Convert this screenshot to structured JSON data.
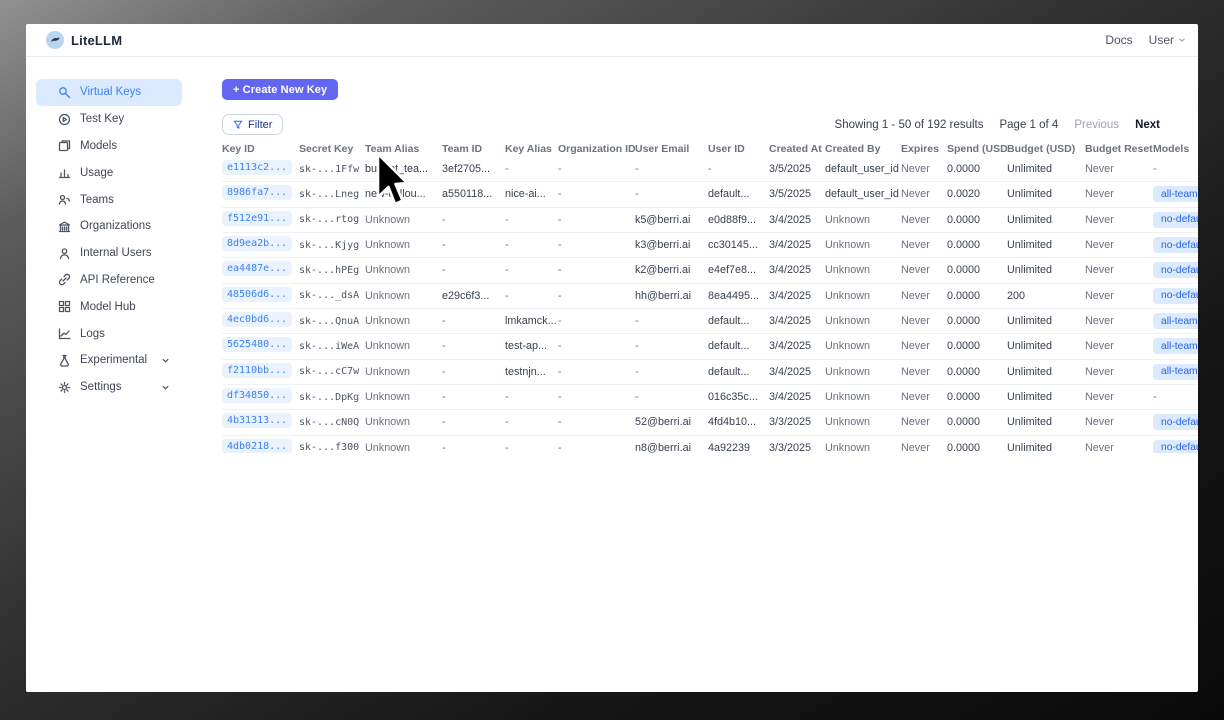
{
  "header": {
    "logo_text": "LiteLLM",
    "docs_label": "Docs",
    "user_label": "User"
  },
  "sidebar": {
    "items": [
      {
        "label": "Virtual Keys",
        "icon": "key-icon",
        "selected": true,
        "chevron": false
      },
      {
        "label": "Test Key",
        "icon": "play-circle-icon",
        "selected": false,
        "chevron": false
      },
      {
        "label": "Models",
        "icon": "models-icon",
        "selected": false,
        "chevron": false
      },
      {
        "label": "Usage",
        "icon": "usage-chart-icon",
        "selected": false,
        "chevron": false
      },
      {
        "label": "Teams",
        "icon": "teams-icon",
        "selected": false,
        "chevron": false
      },
      {
        "label": "Organizations",
        "icon": "organizations-icon",
        "selected": false,
        "chevron": false
      },
      {
        "label": "Internal Users",
        "icon": "internal-users-icon",
        "selected": false,
        "chevron": false
      },
      {
        "label": "API Reference",
        "icon": "api-reference-icon",
        "selected": false,
        "chevron": false
      },
      {
        "label": "Model Hub",
        "icon": "model-hub-icon",
        "selected": false,
        "chevron": false
      },
      {
        "label": "Logs",
        "icon": "logs-icon",
        "selected": false,
        "chevron": false
      },
      {
        "label": "Experimental",
        "icon": "experimental-icon",
        "selected": false,
        "chevron": true
      },
      {
        "label": "Settings",
        "icon": "settings-icon",
        "selected": false,
        "chevron": true
      }
    ]
  },
  "toolbar": {
    "create_button": "+ Create New Key",
    "filter_button": "Filter"
  },
  "pagination": {
    "showing": "Showing 1 - 50 of 192 results",
    "page": "Page 1 of 4",
    "previous": "Previous",
    "next": "Next"
  },
  "table": {
    "columns": [
      "Key ID",
      "Secret Key",
      "Team Alias",
      "Team ID",
      "Key Alias",
      "Organization ID",
      "User Email",
      "User ID",
      "Created At",
      "Created By",
      "Expires",
      "Spend (USD)",
      "Budget (USD)",
      "Budget Reset",
      "Models"
    ],
    "rows": [
      {
        "key_id": "e1113c2...",
        "secret_key": "sk-...1Ffw",
        "team_alias": "budget_tea...",
        "team_id": "3ef2705...",
        "key_alias": "-",
        "organization_id": "-",
        "user_email": "-",
        "user_id": "-",
        "created_at": "3/5/2025",
        "created_by": "default_user_id",
        "expires": "Never",
        "spend": "0.0000",
        "budget": "Unlimited",
        "budget_reset": "Never",
        "models": "-"
      },
      {
        "key_id": "8986fa7...",
        "secret_key": "sk-...Lneg",
        "team_alias": "new-collou...",
        "team_id": "a550118...",
        "key_alias": "nice-ai...",
        "organization_id": "-",
        "user_email": "-",
        "user_id": "default...",
        "created_at": "3/5/2025",
        "created_by": "default_user_id",
        "expires": "Never",
        "spend": "0.0020",
        "budget": "Unlimited",
        "budget_reset": "Never",
        "models": "all-team-models"
      },
      {
        "key_id": "f512e91...",
        "secret_key": "sk-...rtog",
        "team_alias": "Unknown",
        "team_id": "-",
        "key_alias": "-",
        "organization_id": "-",
        "user_email": "k5@berri.ai",
        "user_id": "e0d88f9...",
        "created_at": "3/4/2025",
        "created_by": "Unknown",
        "expires": "Never",
        "spend": "0.0000",
        "budget": "Unlimited",
        "budget_reset": "Never",
        "models": "no-default-models"
      },
      {
        "key_id": "8d9ea2b...",
        "secret_key": "sk-...Kjyg",
        "team_alias": "Unknown",
        "team_id": "-",
        "key_alias": "-",
        "organization_id": "-",
        "user_email": "k3@berri.ai",
        "user_id": "cc30145...",
        "created_at": "3/4/2025",
        "created_by": "Unknown",
        "expires": "Never",
        "spend": "0.0000",
        "budget": "Unlimited",
        "budget_reset": "Never",
        "models": "no-default-models"
      },
      {
        "key_id": "ea4487e...",
        "secret_key": "sk-...hPEg",
        "team_alias": "Unknown",
        "team_id": "-",
        "key_alias": "-",
        "organization_id": "-",
        "user_email": "k2@berri.ai",
        "user_id": "e4ef7e8...",
        "created_at": "3/4/2025",
        "created_by": "Unknown",
        "expires": "Never",
        "spend": "0.0000",
        "budget": "Unlimited",
        "budget_reset": "Never",
        "models": "no-default-models"
      },
      {
        "key_id": "48506d6...",
        "secret_key": "sk-..._dsA",
        "team_alias": "Unknown",
        "team_id": "e29c6f3...",
        "key_alias": "-",
        "organization_id": "-",
        "user_email": "hh@berri.ai",
        "user_id": "8ea4495...",
        "created_at": "3/4/2025",
        "created_by": "Unknown",
        "expires": "Never",
        "spend": "0.0000",
        "budget": "200",
        "budget_reset": "Never",
        "models": "no-default-models"
      },
      {
        "key_id": "4ec0bd6...",
        "secret_key": "sk-...QnuA",
        "team_alias": "Unknown",
        "team_id": "-",
        "key_alias": "lmkamck...",
        "organization_id": "-",
        "user_email": "-",
        "user_id": "default...",
        "created_at": "3/4/2025",
        "created_by": "Unknown",
        "expires": "Never",
        "spend": "0.0000",
        "budget": "Unlimited",
        "budget_reset": "Never",
        "models": "all-team-models"
      },
      {
        "key_id": "5625480...",
        "secret_key": "sk-...iWeA",
        "team_alias": "Unknown",
        "team_id": "-",
        "key_alias": "test-ap...",
        "organization_id": "-",
        "user_email": "-",
        "user_id": "default...",
        "created_at": "3/4/2025",
        "created_by": "Unknown",
        "expires": "Never",
        "spend": "0.0000",
        "budget": "Unlimited",
        "budget_reset": "Never",
        "models": "all-team-models"
      },
      {
        "key_id": "f2110bb...",
        "secret_key": "sk-...cC7w",
        "team_alias": "Unknown",
        "team_id": "-",
        "key_alias": "testnjn...",
        "organization_id": "-",
        "user_email": "-",
        "user_id": "default...",
        "created_at": "3/4/2025",
        "created_by": "Unknown",
        "expires": "Never",
        "spend": "0.0000",
        "budget": "Unlimited",
        "budget_reset": "Never",
        "models": "all-team-models"
      },
      {
        "key_id": "df34850...",
        "secret_key": "sk-...DpKg",
        "team_alias": "Unknown",
        "team_id": "-",
        "key_alias": "-",
        "organization_id": "-",
        "user_email": "-",
        "user_id": "016c35c...",
        "created_at": "3/4/2025",
        "created_by": "Unknown",
        "expires": "Never",
        "spend": "0.0000",
        "budget": "Unlimited",
        "budget_reset": "Never",
        "models": "-"
      },
      {
        "key_id": "4b31313...",
        "secret_key": "sk-...cN0Q",
        "team_alias": "Unknown",
        "team_id": "-",
        "key_alias": "-",
        "organization_id": "-",
        "user_email": "52@berri.ai",
        "user_id": "4fd4b10...",
        "created_at": "3/3/2025",
        "created_by": "Unknown",
        "expires": "Never",
        "spend": "0.0000",
        "budget": "Unlimited",
        "budget_reset": "Never",
        "models": "no-default-models"
      },
      {
        "key_id": "4db0218...",
        "secret_key": "sk-...f300",
        "team_alias": "Unknown",
        "team_id": "-",
        "key_alias": "-",
        "organization_id": "-",
        "user_email": "n8@berri.ai",
        "user_id": "4a92239",
        "created_at": "3/3/2025",
        "created_by": "Unknown",
        "expires": "Never",
        "spend": "0.0000",
        "budget": "Unlimited",
        "budget_reset": "Never",
        "models": "no-default-models"
      }
    ]
  },
  "colors": {
    "accent": "#6366f1",
    "selected_nav_bg": "#dbeafe",
    "selected_nav_text": "#3b82f6",
    "key_pill_bg": "#eaf2fe",
    "key_pill_text": "#3b82f6",
    "model_badge_bg": "#dbeafe",
    "model_badge_text": "#2563eb"
  }
}
